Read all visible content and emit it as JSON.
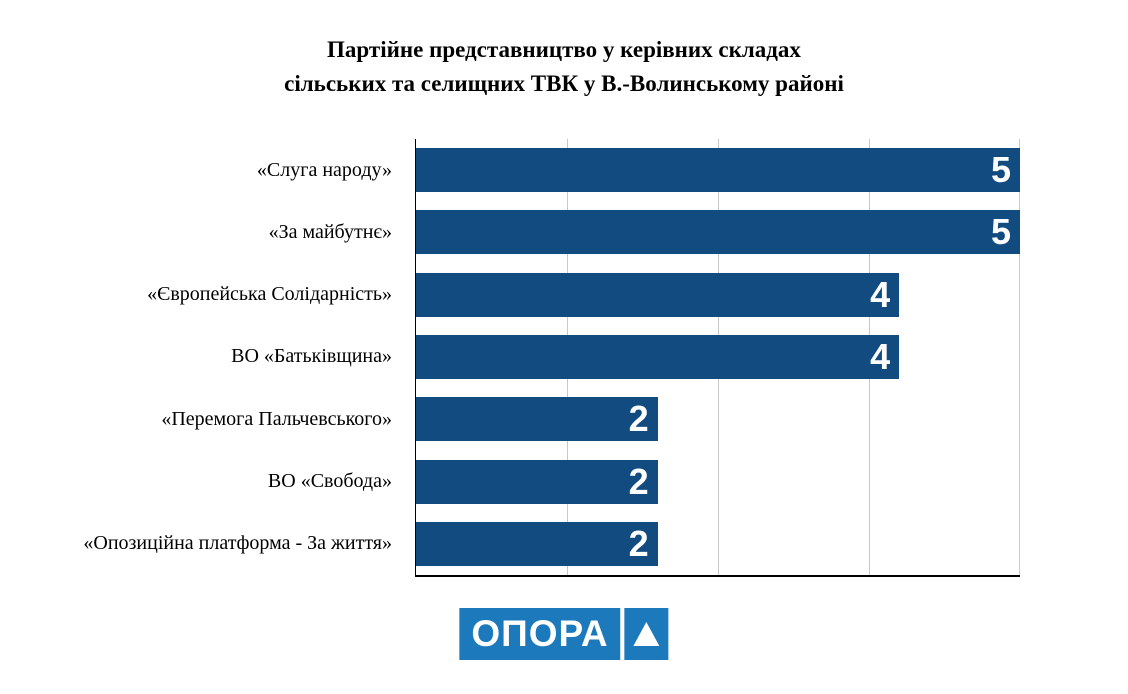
{
  "header": {
    "title_line1": "Партійне представництво у керівних складах",
    "title_line2": "сільських та селищних ТВК у В.-Волинському районі"
  },
  "chart_data": {
    "type": "bar",
    "orientation": "horizontal",
    "title": "Партійне представництво у керівних складах сільських та селищних ТВК у В.-Волинському районі",
    "categories": [
      "«Слуга народу»",
      "«За майбутнє»",
      "«Європейська Солідарність»",
      "ВО «Батьківщина»",
      "«Перемога Пальчевського»",
      "ВО «Свобода»",
      "«Опозиційна платформа - За життя»"
    ],
    "values": [
      5,
      5,
      4,
      4,
      2,
      2,
      2
    ],
    "xlabel": "",
    "ylabel": "",
    "xlim": [
      0,
      5
    ],
    "grid": true,
    "gridline_positions": [
      1.25,
      2.5,
      3.75,
      5
    ],
    "legend": false,
    "bar_color": "#114b80",
    "value_label_color": "#ffffff",
    "gridline_color": "#c9c9c9",
    "axis_color": "#000000"
  },
  "logo": {
    "text": "ОПОРА",
    "triangle_icon": "triangle-up-icon",
    "color": "#1c79bc"
  }
}
